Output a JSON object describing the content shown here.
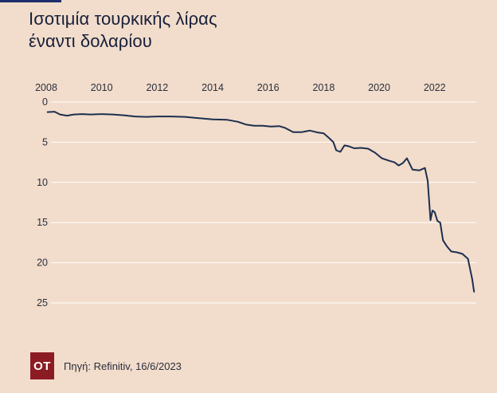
{
  "title_lines": [
    "Ισοτιμία τουρκικής λίρας",
    "έναντι δολαρίου"
  ],
  "footer": {
    "logo_text": "OT",
    "source": "Πηγή: Refinitiv, 16/6/2023"
  },
  "colors": {
    "background": "#f2dccb",
    "line": "#1c2f4f",
    "grid": "#ffffff",
    "logo": "#8c1c24",
    "accent": "#1c2f6b"
  },
  "chart_data": {
    "type": "line",
    "title": "Ισοτιμία τουρκικής λίρας έναντι δολαρίου",
    "x_axis_position": "top",
    "y_inverted": true,
    "xlim": [
      2008,
      2023.5
    ],
    "ylim": [
      0,
      25
    ],
    "x_ticks": [
      2008,
      2010,
      2012,
      2014,
      2016,
      2018,
      2020,
      2022
    ],
    "x_tick_labels": [
      "2008",
      "2010",
      "2012",
      "2014",
      "2016",
      "2018",
      "2020",
      "2022"
    ],
    "y_ticks": [
      0,
      5,
      10,
      15,
      20,
      25
    ],
    "y_tick_labels": [
      "0",
      "5",
      "10",
      "15",
      "20",
      "25"
    ],
    "grid": "horizontal",
    "series": [
      {
        "x": [
          2008.05,
          2008.3,
          2008.5,
          2008.75,
          2009.0,
          2009.3,
          2009.6,
          2010.0,
          2010.4,
          2010.8,
          2011.2,
          2011.6,
          2012.0,
          2012.5,
          2013.0,
          2013.5,
          2014.0,
          2014.5,
          2014.9,
          2015.2,
          2015.5,
          2015.8,
          2016.1,
          2016.4,
          2016.6,
          2016.9,
          2017.2,
          2017.5,
          2017.8,
          2018.0,
          2018.2,
          2018.35,
          2018.45,
          2018.6,
          2018.75,
          2018.9,
          2019.1,
          2019.35,
          2019.6,
          2019.85,
          2020.1,
          2020.35,
          2020.55,
          2020.7,
          2020.85,
          2021.0,
          2021.2,
          2021.45,
          2021.65,
          2021.75,
          2021.85,
          2021.92,
          2022.0,
          2022.1,
          2022.2,
          2022.3,
          2022.45,
          2022.6,
          2022.8,
          2023.0,
          2023.2,
          2023.35,
          2023.42
        ],
        "values": [
          1.25,
          1.2,
          1.55,
          1.7,
          1.55,
          1.5,
          1.55,
          1.5,
          1.55,
          1.65,
          1.8,
          1.85,
          1.8,
          1.8,
          1.85,
          2.0,
          2.15,
          2.2,
          2.45,
          2.8,
          2.95,
          2.95,
          3.05,
          3.0,
          3.2,
          3.75,
          3.75,
          3.55,
          3.8,
          3.9,
          4.5,
          5.0,
          6.0,
          6.2,
          5.4,
          5.5,
          5.75,
          5.7,
          5.8,
          6.3,
          7.0,
          7.3,
          7.5,
          7.9,
          7.6,
          7.0,
          8.4,
          8.5,
          8.2,
          9.8,
          14.7,
          13.5,
          13.7,
          14.8,
          15.0,
          17.2,
          18.0,
          18.6,
          18.7,
          18.9,
          19.5,
          22.0,
          23.6
        ]
      }
    ]
  }
}
